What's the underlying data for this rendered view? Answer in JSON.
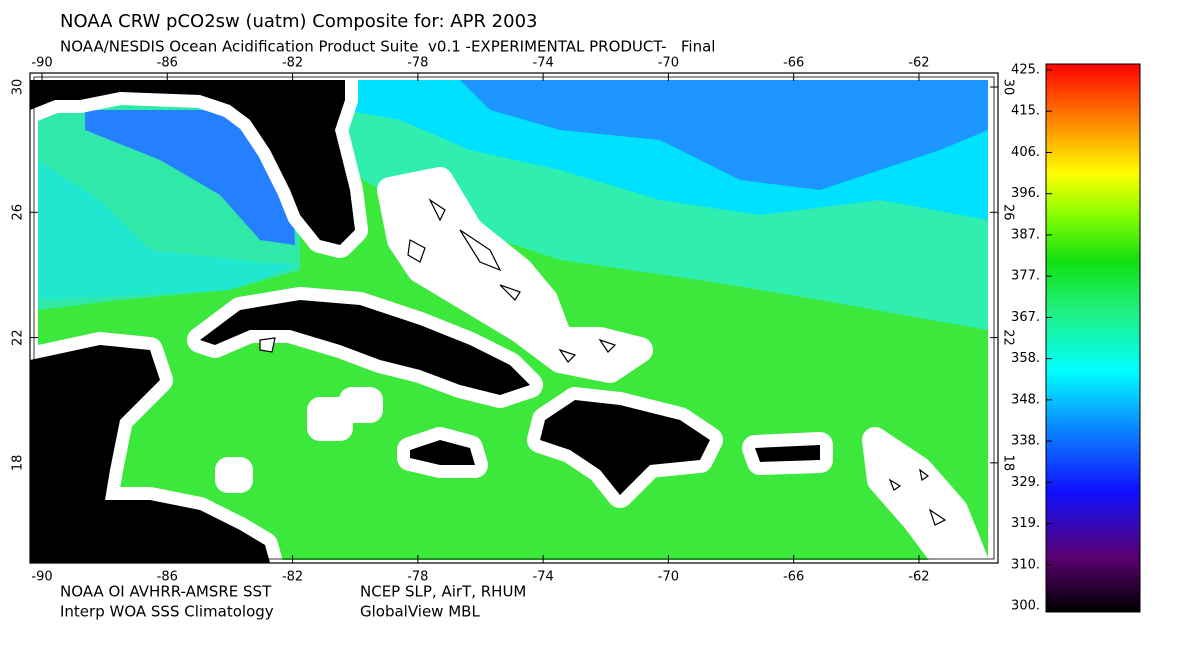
{
  "header": {
    "title": "NOAA CRW pCO2sw (uatm) Composite for: APR 2003",
    "subtitle": "NOAA/NESDIS Ocean Acidification Product Suite  v0.1 -EXPERIMENTAL PRODUCT-   Final"
  },
  "axes": {
    "lon_ticks": [
      -90,
      -86,
      -82,
      -78,
      -74,
      -70,
      -66,
      -62
    ],
    "lat_ticks": [
      30,
      26,
      22,
      18
    ]
  },
  "colorbar": {
    "labels": [
      "425.",
      "415.",
      "406.",
      "396.",
      "387.",
      "377.",
      "367.",
      "358.",
      "348.",
      "338.",
      "329.",
      "319.",
      "310.",
      "300."
    ]
  },
  "footer": {
    "sst_source": "NOAA OI AVHRR-AMSRE SST",
    "met_source": "NCEP SLP, AirT, RHUM",
    "sss_source": "Interp WOA SSS Climatology",
    "co2_source": "GlobalView MBL"
  }
}
